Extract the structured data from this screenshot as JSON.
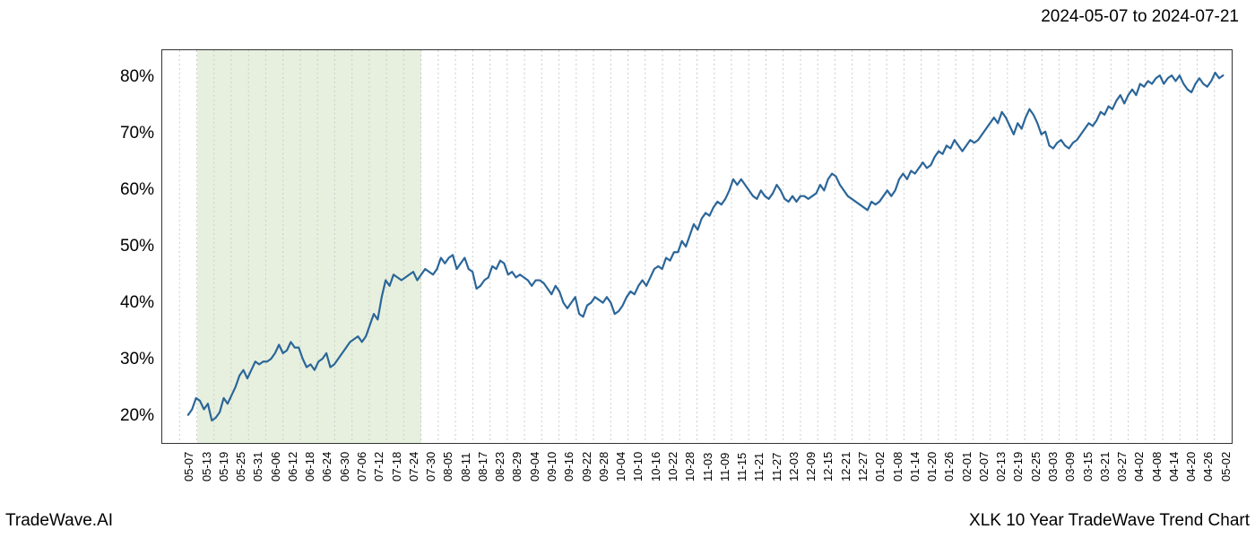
{
  "header": {
    "date_range": "2024-05-07 to 2024-07-21"
  },
  "footer": {
    "left": "TradeWave.AI",
    "right": "XLK 10 Year TradeWave Trend Chart"
  },
  "chart": {
    "type": "line",
    "line_color": "#2b6699",
    "line_width": 2.2,
    "background_color": "#ffffff",
    "grid_color": "#cccccc",
    "highlight": {
      "color": "#e3edd8",
      "start_index": 2,
      "end_index": 15
    },
    "ylim": [
      15,
      85
    ],
    "y_ticks": [
      20,
      30,
      40,
      50,
      60,
      70,
      80
    ],
    "y_tick_labels": [
      "20%",
      "30%",
      "40%",
      "50%",
      "60%",
      "70%",
      "80%"
    ],
    "y_label_fontsize": 19,
    "x_labels": [
      "05-07",
      "05-13",
      "05-19",
      "05-25",
      "05-31",
      "06-06",
      "06-12",
      "06-18",
      "06-24",
      "06-30",
      "07-06",
      "07-12",
      "07-18",
      "07-24",
      "07-30",
      "08-05",
      "08-11",
      "08-17",
      "08-23",
      "08-29",
      "09-04",
      "09-10",
      "09-16",
      "09-22",
      "09-28",
      "10-04",
      "10-10",
      "10-16",
      "10-22",
      "10-28",
      "11-03",
      "11-09",
      "11-15",
      "11-21",
      "11-27",
      "12-03",
      "12-09",
      "12-15",
      "12-21",
      "12-27",
      "01-02",
      "01-08",
      "01-14",
      "01-20",
      "01-26",
      "02-01",
      "02-07",
      "02-13",
      "02-19",
      "02-25",
      "03-03",
      "03-09",
      "03-15",
      "03-21",
      "03-27",
      "04-02",
      "04-08",
      "04-14",
      "04-20",
      "04-26",
      "05-02"
    ],
    "x_label_fontsize": 13,
    "x_label_rotation": 90,
    "values": [
      20,
      21,
      23,
      22.5,
      21,
      22,
      19,
      19.5,
      20.5,
      23,
      22,
      23.5,
      25,
      27,
      28,
      26.5,
      28,
      29.5,
      29,
      29.5,
      29.5,
      30,
      31,
      32.5,
      31,
      31.5,
      33,
      32,
      32,
      30,
      28.5,
      29,
      28,
      29.5,
      30,
      31,
      28.5,
      29,
      30,
      31,
      32,
      33,
      33.5,
      34,
      33,
      34,
      36,
      38,
      37,
      41,
      44,
      43,
      45,
      44.5,
      44,
      44.5,
      45,
      45.5,
      44,
      45,
      46,
      45.5,
      45,
      46,
      48,
      47,
      48,
      48.5,
      46,
      47,
      48,
      46,
      45.5,
      42.5,
      43,
      44,
      44.5,
      46.5,
      46,
      47.5,
      47,
      45,
      45.5,
      44.5,
      45,
      44.5,
      44,
      43,
      44,
      44,
      43.5,
      42.5,
      41.5,
      43,
      42,
      40,
      39,
      40,
      41,
      38,
      37.5,
      39.5,
      40,
      41,
      40.5,
      40,
      41,
      40,
      38,
      38.5,
      39.5,
      41,
      42,
      41.5,
      43,
      44,
      43,
      44.5,
      46,
      46.5,
      46,
      48,
      47.5,
      49,
      49,
      51,
      50,
      52,
      54,
      53,
      55,
      56,
      55.5,
      57,
      58,
      57.5,
      58.5,
      60,
      62,
      61,
      62,
      61,
      60,
      59,
      58.5,
      60,
      59,
      58.5,
      59.5,
      61,
      60,
      58.5,
      58,
      59,
      58,
      59,
      59,
      58.5,
      59,
      59.5,
      61,
      60,
      62,
      63,
      62.5,
      61,
      60,
      59,
      58.5,
      58,
      57.5,
      57,
      56.5,
      58,
      57.5,
      58,
      59,
      60,
      59,
      60,
      62,
      63,
      62,
      63.5,
      63,
      64,
      65,
      64,
      64.5,
      66,
      67,
      66.5,
      68,
      67.5,
      69,
      68,
      67,
      68,
      69,
      68.5,
      69,
      70,
      71,
      72,
      73,
      72,
      74,
      73,
      71.5,
      70,
      72,
      71,
      73,
      74.5,
      73.5,
      72,
      70,
      70.5,
      68,
      67.5,
      68.5,
      69,
      68,
      67.5,
      68.5,
      69,
      70,
      71,
      72,
      71.5,
      72.5,
      74,
      73.5,
      75,
      74.5,
      76,
      77,
      75.5,
      77,
      78,
      77,
      79,
      78.5,
      79.5,
      79,
      80,
      80.5,
      79,
      80,
      80.5,
      79.5,
      80.5,
      79,
      78,
      77.5,
      79,
      80,
      79,
      78.5,
      79.5,
      81,
      80,
      80.5
    ]
  }
}
